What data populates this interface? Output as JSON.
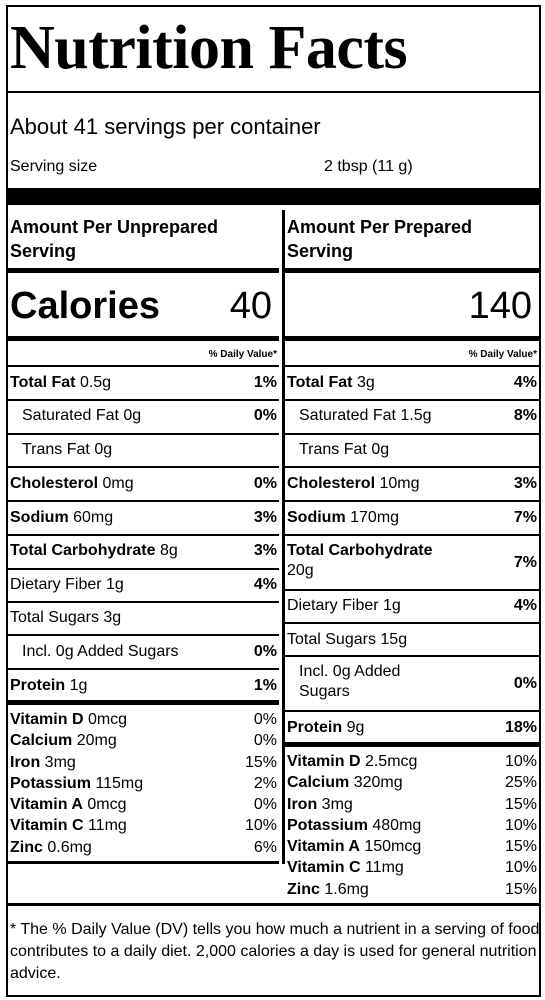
{
  "title": "Nutrition Facts",
  "servings": "About 41 servings per container",
  "serving_size_label": "Serving size",
  "serving_size_value": "2 tbsp (11 g)",
  "unprepared": {
    "header": "Amount Per Unprepared Serving",
    "calories_label": "Calories",
    "calories": "40",
    "dv_header": "% Daily Value*",
    "rows": [
      {
        "name": "Total Fat",
        "amount": "0.5g",
        "dv": "1%"
      },
      {
        "name": "Saturated Fat",
        "amount": "0g",
        "dv": "0%"
      },
      {
        "name": "Trans Fat",
        "amount": "0g",
        "dv": ""
      },
      {
        "name": "Cholesterol",
        "amount": "0mg",
        "dv": "0%"
      },
      {
        "name": "Sodium",
        "amount": "60mg",
        "dv": "3%"
      },
      {
        "name": "Total Carbohydrate",
        "amount": "8g",
        "dv": "3%"
      },
      {
        "name": "Dietary Fiber",
        "amount": "1g",
        "dv": "4%"
      },
      {
        "name": "Total Sugars",
        "amount": "3g",
        "dv": ""
      },
      {
        "name": "Incl. 0g Added Sugars",
        "amount": "",
        "dv": "0%"
      },
      {
        "name": "Protein",
        "amount": "1g",
        "dv": "1%"
      }
    ],
    "vitamins": [
      {
        "name": "Vitamin D",
        "amount": "0mcg",
        "dv": "0%"
      },
      {
        "name": "Calcium",
        "amount": "20mg",
        "dv": "0%"
      },
      {
        "name": "Iron",
        "amount": "3mg",
        "dv": "15%"
      },
      {
        "name": "Potassium",
        "amount": "115mg",
        "dv": "2%"
      },
      {
        "name": "Vitamin A",
        "amount": "0mcg",
        "dv": "0%"
      },
      {
        "name": "Vitamin C",
        "amount": "11mg",
        "dv": "10%"
      },
      {
        "name": "Zinc",
        "amount": "0.6mg",
        "dv": "6%"
      }
    ]
  },
  "prepared": {
    "header": "Amount Per Prepared Serving",
    "calories": "140",
    "dv_header": "% Daily Value*",
    "rows": [
      {
        "name": "Total Fat",
        "amount": "3g",
        "dv": "4%"
      },
      {
        "name": "Saturated Fat",
        "amount": "1.5g",
        "dv": "8%"
      },
      {
        "name": "Trans Fat",
        "amount": "0g",
        "dv": ""
      },
      {
        "name": "Cholesterol",
        "amount": "10mg",
        "dv": "3%"
      },
      {
        "name": "Sodium",
        "amount": "170mg",
        "dv": "7%"
      },
      {
        "name": "Total Carbohydrate",
        "amount": "20g",
        "dv": "7%"
      },
      {
        "name": "Dietary Fiber",
        "amount": "1g",
        "dv": "4%"
      },
      {
        "name": "Total Sugars",
        "amount": "15g",
        "dv": ""
      },
      {
        "name": "Incl. 0g Added Sugars",
        "amount": "",
        "dv": "0%"
      },
      {
        "name": "Protein",
        "amount": "9g",
        "dv": "18%"
      }
    ],
    "vitamins": [
      {
        "name": "Vitamin D",
        "amount": "2.5mcg",
        "dv": "10%"
      },
      {
        "name": "Calcium",
        "amount": "320mg",
        "dv": "25%"
      },
      {
        "name": "Iron",
        "amount": "3mg",
        "dv": "15%"
      },
      {
        "name": "Potassium",
        "amount": "480mg",
        "dv": "10%"
      },
      {
        "name": "Vitamin A",
        "amount": "150mcg",
        "dv": "15%"
      },
      {
        "name": "Vitamin C",
        "amount": "11mg",
        "dv": "10%"
      },
      {
        "name": "Zinc",
        "amount": "1.6mg",
        "dv": "15%"
      }
    ]
  },
  "footnote": "* The % Daily Value (DV) tells you how much a nutrient in a serving of food contributes to a daily diet. 2,000 calories a day is used for general nutrition advice."
}
